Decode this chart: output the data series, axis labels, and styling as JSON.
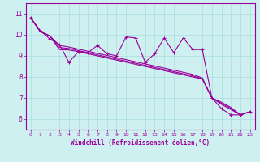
{
  "bg_color": "#cff0f0",
  "line_color": "#990099",
  "grid_color": "#aadddd",
  "xlabel": "Windchill (Refroidissement éolien,°C)",
  "ylim": [
    5.5,
    11.5
  ],
  "xlim": [
    -0.5,
    23.5
  ],
  "yticks": [
    6,
    7,
    8,
    9,
    10,
    11
  ],
  "xticks": [
    0,
    1,
    2,
    3,
    4,
    5,
    6,
    7,
    8,
    9,
    10,
    11,
    12,
    13,
    14,
    15,
    16,
    17,
    18,
    19,
    20,
    21,
    22,
    23
  ],
  "zigzag_x": [
    0,
    1,
    2,
    3,
    4,
    5,
    6,
    7,
    8,
    9,
    10,
    11,
    12,
    13,
    14,
    15,
    16,
    17,
    18,
    19,
    20,
    21,
    22,
    23
  ],
  "zigzag_y": [
    10.8,
    10.2,
    9.8,
    9.55,
    8.7,
    9.2,
    9.15,
    9.5,
    9.1,
    9.0,
    9.9,
    9.85,
    8.7,
    9.1,
    9.85,
    9.15,
    9.85,
    9.3,
    9.3,
    7.0,
    6.5,
    6.2,
    6.2,
    6.35
  ],
  "line1_y": [
    10.8,
    10.15,
    9.95,
    9.3,
    9.28,
    9.2,
    9.1,
    9.0,
    8.9,
    8.8,
    8.7,
    8.6,
    8.5,
    8.4,
    8.3,
    8.2,
    8.1,
    8.0,
    7.9,
    7.0,
    6.8,
    6.55,
    6.2,
    6.35
  ],
  "line2_y": [
    10.8,
    10.15,
    9.95,
    9.4,
    9.35,
    9.25,
    9.15,
    9.05,
    8.95,
    8.85,
    8.75,
    8.65,
    8.55,
    8.45,
    8.35,
    8.25,
    8.15,
    8.05,
    7.92,
    7.0,
    6.75,
    6.5,
    6.2,
    6.35
  ],
  "line3_y": [
    10.8,
    10.15,
    9.95,
    9.5,
    9.42,
    9.32,
    9.22,
    9.12,
    9.02,
    8.92,
    8.82,
    8.72,
    8.62,
    8.52,
    8.42,
    8.32,
    8.22,
    8.12,
    7.95,
    7.0,
    6.7,
    6.45,
    6.2,
    6.35
  ]
}
